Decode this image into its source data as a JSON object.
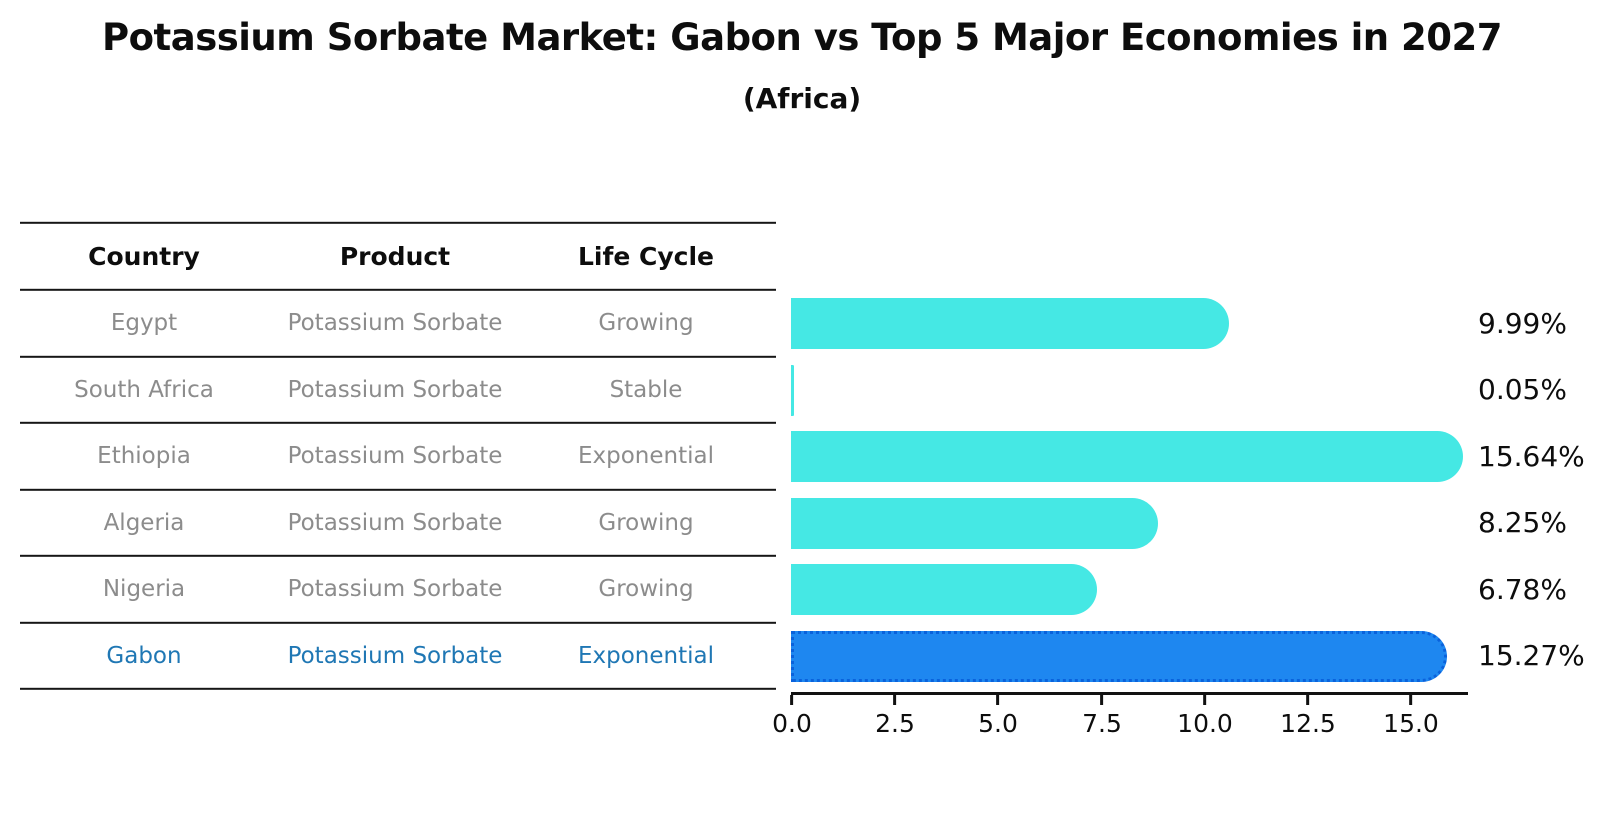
{
  "title": "Potassium Sorbate Market: Gabon vs Top 5 Major Economies in 2027",
  "subtitle": "(Africa)",
  "table": {
    "headers": {
      "country": "Country",
      "product": "Product",
      "life_cycle": "Life Cycle"
    },
    "rows": [
      {
        "country": "Egypt",
        "product": "Potassium Sorbate",
        "life_cycle": "Growing",
        "value_label": "9.99%"
      },
      {
        "country": "South Africa",
        "product": "Potassium Sorbate",
        "life_cycle": "Stable",
        "value_label": "0.05%"
      },
      {
        "country": "Ethiopia",
        "product": "Potassium Sorbate",
        "life_cycle": "Exponential",
        "value_label": "15.64%"
      },
      {
        "country": "Algeria",
        "product": "Potassium Sorbate",
        "life_cycle": "Growing",
        "value_label": "8.25%"
      },
      {
        "country": "Nigeria",
        "product": "Potassium Sorbate",
        "life_cycle": "Growing",
        "value_label": "6.78%"
      },
      {
        "country": "Gabon",
        "product": "Potassium Sorbate",
        "life_cycle": "Exponential",
        "value_label": "15.27%"
      }
    ]
  },
  "chart_data": {
    "type": "bar",
    "orientation": "horizontal",
    "title": "Potassium Sorbate Market: Gabon vs Top 5 Major Economies in 2027 (Africa)",
    "categories": [
      "Egypt",
      "South Africa",
      "Ethiopia",
      "Algeria",
      "Nigeria",
      "Gabon"
    ],
    "values": [
      9.99,
      0.05,
      15.64,
      8.25,
      6.78,
      15.27
    ],
    "value_labels": [
      "9.99%",
      "0.05%",
      "15.64%",
      "8.25%",
      "6.78%",
      "15.27%"
    ],
    "unit": "%",
    "xlabel": "",
    "ylabel": "",
    "xlim": [
      0,
      16.4
    ],
    "xticks": [
      "0.0",
      "2.5",
      "5.0",
      "7.5",
      "10.0",
      "12.5",
      "15.0"
    ],
    "xtick_values": [
      0,
      2.5,
      5,
      7.5,
      10,
      12.5,
      15
    ],
    "grid": false,
    "legend": false,
    "highlight_index": 5,
    "highlight_category": "Gabon",
    "colors": {
      "bar": "#45E8E4",
      "highlight_bar": "#1E87F0",
      "highlight_border": "#0A62DC",
      "highlight_text": "#1F77B4",
      "row_text": "#8C8C8C",
      "axis_text": "#0d0d0d"
    }
  }
}
